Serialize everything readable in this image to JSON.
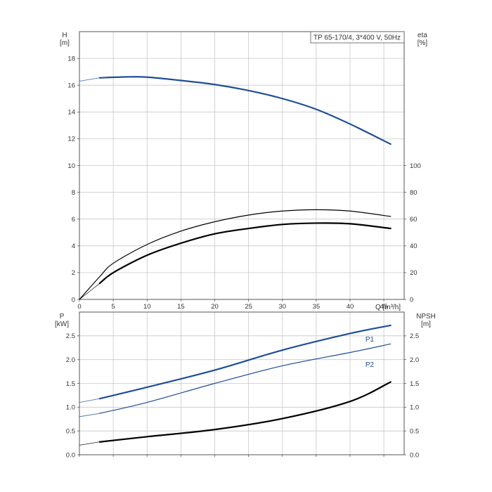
{
  "chart_data": [
    {
      "type": "line",
      "legend_box": "TP 65-170/4, 3*400 V, 50Hz",
      "xlabel": "Q [m³/h]",
      "x_range": [
        0,
        48
      ],
      "x_ticks": [
        0,
        5,
        10,
        15,
        20,
        25,
        30,
        35,
        40,
        45
      ],
      "y_left": {
        "label_line1": "H",
        "label_line2": "[m]",
        "range": [
          0,
          20
        ],
        "ticks": [
          0,
          2,
          4,
          6,
          8,
          10,
          12,
          14,
          16,
          18
        ]
      },
      "y_right": {
        "label_line1": "eta",
        "label_line2": "[%]",
        "range": [
          0,
          200
        ],
        "ticks": [
          0,
          20,
          40,
          60,
          80,
          100
        ]
      },
      "grid": true,
      "series": [
        {
          "id": "H",
          "axis": "left",
          "color": "#1f4e96",
          "width": 2.2,
          "x": [
            0,
            3,
            7,
            10,
            15,
            20,
            25,
            30,
            35,
            40,
            46
          ],
          "y": [
            16.3,
            16.55,
            16.62,
            16.6,
            16.35,
            16.05,
            15.6,
            15.0,
            14.2,
            13.1,
            11.6
          ],
          "start_dashed_until": 3
        },
        {
          "id": "eta-upper",
          "axis": "right",
          "color": "#000000",
          "width": 1.2,
          "x": [
            0,
            3,
            5,
            10,
            15,
            20,
            25,
            30,
            35,
            40,
            46
          ],
          "y": [
            0,
            17,
            27,
            41,
            51,
            58,
            63,
            66,
            67,
            66,
            62
          ],
          "start_dashed_until": 0
        },
        {
          "id": "eta-lower",
          "axis": "right",
          "color": "#000000",
          "width": 2.2,
          "x": [
            0,
            3,
            5,
            10,
            15,
            20,
            25,
            30,
            35,
            40,
            46
          ],
          "y": [
            0,
            12,
            20,
            33,
            42,
            49,
            53,
            56,
            57,
            56.5,
            53
          ],
          "start_dashed_until": 3
        }
      ]
    },
    {
      "type": "line",
      "x_range": [
        0,
        48
      ],
      "y_left": {
        "label_line1": "P",
        "label_line2": "[kW]",
        "range": [
          0,
          3.0
        ],
        "ticks": [
          "0.0",
          "0.5",
          "1.0",
          "1.5",
          "2.0",
          "2.5"
        ]
      },
      "y_right": {
        "label_line1": "NPSH",
        "label_line2": "[m]",
        "range": [
          0,
          3.0
        ],
        "ticks": [
          "0.0",
          "0.5",
          "1.0",
          "1.5",
          "2.0",
          "2.5"
        ]
      },
      "grid": true,
      "series": [
        {
          "id": "P1",
          "name": "P1",
          "axis": "left",
          "color": "#1f4e96",
          "width": 2.2,
          "x": [
            0,
            3,
            10,
            20,
            30,
            40,
            46
          ],
          "y": [
            1.1,
            1.18,
            1.42,
            1.78,
            2.2,
            2.55,
            2.72
          ],
          "start_dashed_until": 3
        },
        {
          "id": "P2",
          "name": "P2",
          "axis": "left",
          "color": "#1f4e96",
          "width": 1.2,
          "x": [
            0,
            3,
            10,
            20,
            30,
            40,
            46
          ],
          "y": [
            0.8,
            0.87,
            1.1,
            1.5,
            1.87,
            2.15,
            2.33
          ],
          "start_dashed_until": 3
        },
        {
          "id": "NPSH",
          "axis": "right",
          "color": "#000000",
          "width": 2.2,
          "x": [
            0,
            3,
            10,
            20,
            30,
            40,
            46
          ],
          "y": [
            0.2,
            0.27,
            0.38,
            0.53,
            0.76,
            1.12,
            1.53
          ],
          "start_dashed_until": 3
        }
      ]
    }
  ]
}
